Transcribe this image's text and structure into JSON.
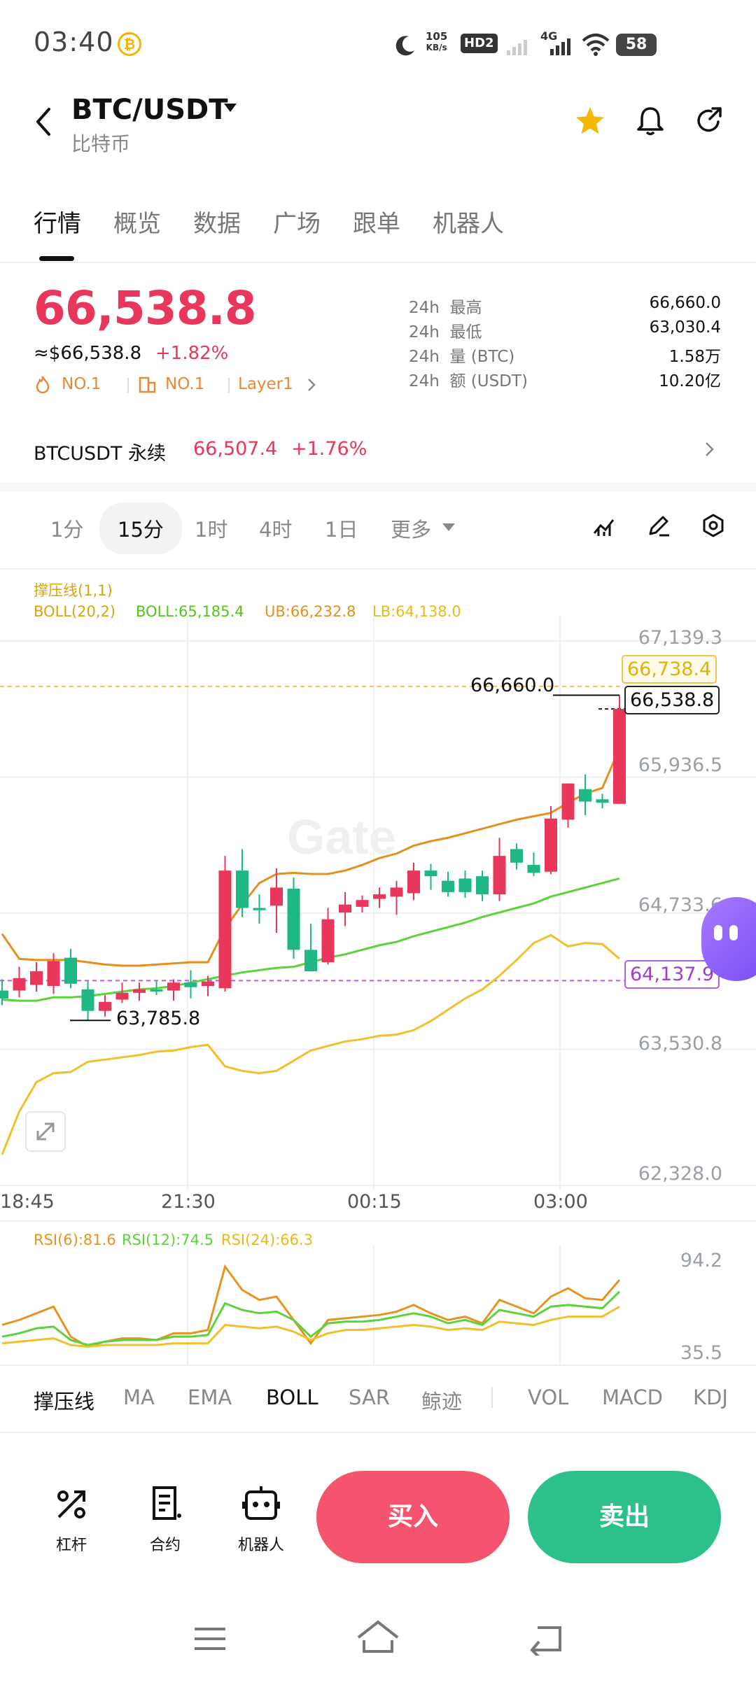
{
  "status_bar": {
    "time": "03:40",
    "coin_glyph": "₿",
    "net_speed": "105",
    "net_unit": "KB/s",
    "hd": "HD2",
    "signal": "4G",
    "battery": "58"
  },
  "header": {
    "pair": "BTC/USDT",
    "subtitle": "比特币",
    "icons": [
      "back-icon",
      "star-icon",
      "bell-icon",
      "share-icon"
    ],
    "star_color": "#f5b800"
  },
  "tabs": [
    {
      "label": "行情",
      "active": true
    },
    {
      "label": "概览",
      "active": false
    },
    {
      "label": "数据",
      "active": false
    },
    {
      "label": "广场",
      "active": false
    },
    {
      "label": "跟单",
      "active": false
    },
    {
      "label": "机器人",
      "active": false
    }
  ],
  "price": {
    "last": "66,538.8",
    "usd": "≈$66,538.8",
    "change": "+1.82%",
    "rank1_label": "NO.1",
    "rank2_label": "NO.1",
    "category": "Layer1"
  },
  "stats": [
    {
      "period": "24h",
      "label": "最高",
      "value": "66,660.0"
    },
    {
      "period": "24h",
      "label": "最低",
      "value": "63,030.4"
    },
    {
      "period": "24h",
      "label": "量 (BTC)",
      "value": "1.58万"
    },
    {
      "period": "24h",
      "label": "额 (USDT)",
      "value": "10.20亿"
    }
  ],
  "perpetual": {
    "label": "BTCUSDT 永续",
    "price": "66,507.4",
    "change": "+1.76%"
  },
  "timeframes": [
    {
      "label": "1分",
      "active": false
    },
    {
      "label": "15分",
      "active": true
    },
    {
      "label": "1时",
      "active": false
    },
    {
      "label": "4时",
      "active": false
    },
    {
      "label": "1日",
      "active": false
    },
    {
      "label": "更多",
      "active": false
    }
  ],
  "colors": {
    "up": "#e8375a",
    "down": "#1fb784",
    "accent": "#f4546d",
    "sell": "#2ec08a"
  },
  "chart_data": [
    {
      "type": "candlestick",
      "title": "",
      "overlay_labels": {
        "sr": "撑压线(1,1)",
        "boll_params": "BOLL(20,2)",
        "boll_mid": "BOLL:65,185.4",
        "boll_ub": "UB:66,232.8",
        "boll_lb": "LB:64,138.0"
      },
      "y_ticks": [
        "67,139.3",
        "65,936.5",
        "64,733.6",
        "63,530.8",
        "62,328.0"
      ],
      "x_ticks": [
        "18:45",
        "21:30",
        "00:15",
        "03:00"
      ],
      "ylim": [
        62328.0,
        67139.3
      ],
      "price_tags": {
        "ub_line": "66,738.4",
        "last": "66,538.8",
        "lb_line": "64,137.9"
      },
      "annotations": {
        "high": "66,660.0",
        "low": "63,785.8"
      },
      "candles": [
        {
          "o": 64050,
          "h": 64150,
          "c": 63980,
          "l": 63920
        },
        {
          "o": 64050,
          "h": 64260,
          "c": 64160,
          "l": 63990
        },
        {
          "o": 64100,
          "h": 64300,
          "c": 64220,
          "l": 64040
        },
        {
          "o": 64090,
          "h": 64380,
          "c": 64310,
          "l": 64020
        },
        {
          "o": 64340,
          "h": 64420,
          "c": 64110,
          "l": 64070
        },
        {
          "o": 64060,
          "h": 64130,
          "c": 63870,
          "l": 63786
        },
        {
          "o": 63870,
          "h": 64010,
          "c": 63950,
          "l": 63820
        },
        {
          "o": 63970,
          "h": 64120,
          "c": 64030,
          "l": 63940
        },
        {
          "o": 64030,
          "h": 64120,
          "c": 64060,
          "l": 63960
        },
        {
          "o": 64060,
          "h": 64130,
          "c": 64050,
          "l": 64010
        },
        {
          "o": 64050,
          "h": 64150,
          "c": 64120,
          "l": 63960
        },
        {
          "o": 64120,
          "h": 64230,
          "c": 64080,
          "l": 63980
        },
        {
          "o": 64090,
          "h": 64180,
          "c": 64130,
          "l": 64000
        },
        {
          "o": 64070,
          "h": 65240,
          "c": 65110,
          "l": 64040
        },
        {
          "o": 65110,
          "h": 65300,
          "c": 64780,
          "l": 64700
        },
        {
          "o": 64780,
          "h": 64900,
          "c": 64760,
          "l": 64640
        },
        {
          "o": 64800,
          "h": 65130,
          "c": 64960,
          "l": 64560
        },
        {
          "o": 64950,
          "h": 65050,
          "c": 64410,
          "l": 64330
        },
        {
          "o": 64410,
          "h": 64640,
          "c": 64220,
          "l": 64220
        },
        {
          "o": 64300,
          "h": 64780,
          "c": 64680,
          "l": 64280
        },
        {
          "o": 64740,
          "h": 64920,
          "c": 64810,
          "l": 64620
        },
        {
          "o": 64790,
          "h": 64890,
          "c": 64850,
          "l": 64740
        },
        {
          "o": 64860,
          "h": 64960,
          "c": 64900,
          "l": 64780
        },
        {
          "o": 64880,
          "h": 65020,
          "c": 64960,
          "l": 64720
        },
        {
          "o": 64910,
          "h": 65180,
          "c": 65110,
          "l": 64850
        },
        {
          "o": 65110,
          "h": 65170,
          "c": 65060,
          "l": 64940
        },
        {
          "o": 65020,
          "h": 65100,
          "c": 64920,
          "l": 64880
        },
        {
          "o": 65040,
          "h": 65110,
          "c": 64920,
          "l": 64870
        },
        {
          "o": 65060,
          "h": 65110,
          "c": 64900,
          "l": 64840
        },
        {
          "o": 64900,
          "h": 65400,
          "c": 65240,
          "l": 64840
        },
        {
          "o": 65300,
          "h": 65350,
          "c": 65180,
          "l": 65120
        },
        {
          "o": 65160,
          "h": 65270,
          "c": 65090,
          "l": 65060
        },
        {
          "o": 65100,
          "h": 65680,
          "c": 65570,
          "l": 65080
        },
        {
          "o": 65560,
          "h": 65880,
          "c": 65880,
          "l": 65490
        },
        {
          "o": 65830,
          "h": 65960,
          "c": 65720,
          "l": 65600
        },
        {
          "o": 65740,
          "h": 65790,
          "c": 65710,
          "l": 65660
        },
        {
          "o": 65700,
          "h": 66660,
          "c": 66539,
          "l": 65700
        }
      ],
      "boll_mid": [
        63970,
        63960,
        63960,
        63990,
        63990,
        64000,
        64020,
        64040,
        64060,
        64070,
        64090,
        64120,
        64150,
        64180,
        64210,
        64230,
        64250,
        64260,
        64300,
        64340,
        64370,
        64410,
        64450,
        64480,
        64530,
        64570,
        64610,
        64650,
        64700,
        64740,
        64780,
        64820,
        64880,
        64920,
        64960,
        65000,
        65040
      ],
      "boll_ub": [
        64550,
        64330,
        64320,
        64320,
        64320,
        64300,
        64280,
        64270,
        64270,
        64280,
        64290,
        64300,
        64300,
        64600,
        64810,
        65000,
        65080,
        65090,
        65080,
        65080,
        65110,
        65160,
        65220,
        65260,
        65330,
        65370,
        65400,
        65440,
        65480,
        65520,
        65560,
        65590,
        65620,
        65710,
        65790,
        65840,
        66190
      ],
      "boll_lb": [
        62600,
        62980,
        63240,
        63320,
        63330,
        63420,
        63440,
        63460,
        63480,
        63510,
        63520,
        63550,
        63570,
        63380,
        63340,
        63320,
        63340,
        63430,
        63520,
        63560,
        63600,
        63620,
        63650,
        63660,
        63700,
        63780,
        63880,
        63980,
        64060,
        64180,
        64320,
        64470,
        64540,
        64440,
        64470,
        64460,
        64330
      ]
    },
    {
      "type": "line",
      "title": "",
      "labels": {
        "rsi6": "RSI(6):81.6",
        "rsi12": "RSI(12):74.5",
        "rsi24": "RSI(24):66.3"
      },
      "y_ticks": [
        "94.2",
        "35.5"
      ],
      "ylim": [
        35.5,
        94.2
      ],
      "series": [
        {
          "name": "RSI(6)",
          "values": [
            55,
            58,
            62,
            66,
            48,
            42,
            45,
            47,
            47,
            46,
            50,
            50,
            52,
            90,
            76,
            70,
            72,
            58,
            44,
            58,
            59,
            60,
            61,
            63,
            67,
            62,
            58,
            60,
            56,
            70,
            66,
            62,
            72,
            77,
            71,
            70,
            82
          ]
        },
        {
          "name": "RSI(12)",
          "values": [
            48,
            50,
            53,
            54,
            46,
            43,
            45,
            46,
            46,
            46,
            48,
            48,
            49,
            68,
            64,
            62,
            63,
            58,
            48,
            56,
            57,
            57,
            58,
            60,
            62,
            60,
            56,
            58,
            55,
            64,
            62,
            60,
            66,
            67,
            66,
            65,
            75
          ]
        },
        {
          "name": "RSI(24)",
          "values": [
            44,
            45,
            46,
            47,
            43,
            42,
            43,
            43,
            43,
            43,
            44,
            44,
            44,
            55,
            54,
            53,
            54,
            51,
            46,
            50,
            52,
            52,
            53,
            54,
            55,
            54,
            52,
            53,
            52,
            57,
            56,
            55,
            58,
            60,
            60,
            60,
            66
          ]
        }
      ],
      "series_colors": [
        "#e59422",
        "#5bd33a",
        "#f0c02d"
      ]
    }
  ],
  "indicators": [
    "撑压线",
    "MA",
    "EMA",
    "BOLL",
    "SAR",
    "鲸迹",
    "VOL",
    "MACD",
    "KDJ"
  ],
  "actions": {
    "leverage": "杠杆",
    "contract": "合约",
    "bot": "机器人",
    "buy": "买入",
    "sell": "卖出"
  },
  "watermark": "Gate"
}
